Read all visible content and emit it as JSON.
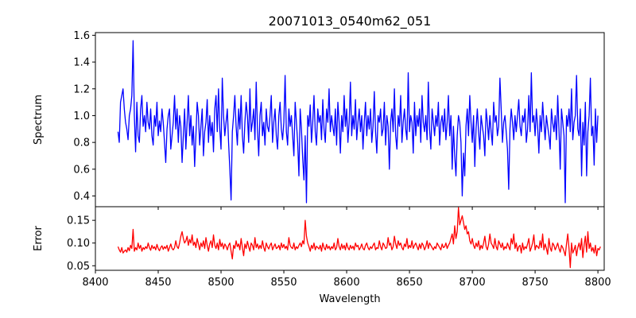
{
  "chart_data": [
    {
      "type": "line",
      "title": "20071013_0540m62_051",
      "xlabel": "",
      "ylabel": "Spectrum",
      "xlim": [
        8400,
        8805
      ],
      "ylim": [
        0.32,
        1.62
      ],
      "xticks": [
        8400,
        8450,
        8500,
        8550,
        8600,
        8650,
        8700,
        8750,
        8800
      ],
      "yticks": [
        0.4,
        0.6,
        0.8,
        1.0,
        1.2,
        1.4,
        1.6
      ],
      "ytick_labels": [
        "0.4",
        "0.6",
        "0.8",
        "1.0",
        "1.2",
        "1.4",
        "1.6"
      ],
      "grid": false,
      "series": [
        {
          "color": "#0000ff",
          "x_start": 8418,
          "x_step": 1,
          "values": [
            0.88,
            0.8,
            1.1,
            1.15,
            1.2,
            1.05,
            0.95,
            0.9,
            0.82,
            1.0,
            1.05,
            1.15,
            1.56,
            1.0,
            0.73,
            1.1,
            0.85,
            0.8,
            1.05,
            1.15,
            0.92,
            1.0,
            0.88,
            1.1,
            0.95,
            0.9,
            1.05,
            0.85,
            0.78,
            1.0,
            0.92,
            1.1,
            0.85,
            0.96,
            0.88,
            1.05,
            0.95,
            0.8,
            0.65,
            0.9,
            1.0,
            1.05,
            0.75,
            0.85,
            0.95,
            1.15,
            0.9,
            1.05,
            0.8,
            1.0,
            0.92,
            0.65,
            0.85,
            1.05,
            0.75,
            0.95,
            1.15,
            0.85,
            1.0,
            0.78,
            0.92,
            0.62,
            0.85,
            1.1,
            1.0,
            0.78,
            0.92,
            1.05,
            0.7,
            0.88,
            0.95,
            1.12,
            0.8,
            1.0,
            0.85,
            0.95,
            0.73,
            1.05,
            1.15,
            0.88,
            1.2,
            0.9,
            0.75,
            1.28,
            1.0,
            0.85,
            0.95,
            1.05,
            0.8,
            0.6,
            0.37,
            0.88,
            1.0,
            1.15,
            0.92,
            0.78,
            1.05,
            0.9,
            1.15,
            0.85,
            0.72,
            0.95,
            1.1,
            1.0,
            0.8,
            1.2,
            0.88,
            0.95,
            1.05,
            0.82,
            1.25,
            0.9,
            0.7,
            1.0,
            1.1,
            0.85,
            0.95,
            0.78,
            1.05,
            0.92,
            0.88,
            1.0,
            1.15,
            0.8,
            0.95,
            1.05,
            0.85,
            0.75,
            1.0,
            1.1,
            0.9,
            0.82,
            0.95,
            1.3,
            0.88,
            0.78,
            1.05,
            0.92,
            1.0,
            0.85,
            0.7,
            1.1,
            0.95,
            0.8,
            0.55,
            1.05,
            0.9,
            0.68,
            0.52,
            0.85,
            0.35,
            1.0,
            0.92,
            1.08,
            0.8,
            0.95,
            1.15,
            0.88,
            0.78,
            1.05,
            0.95,
            1.0,
            0.82,
            1.12,
            0.9,
            0.8,
            1.05,
            0.95,
            1.2,
            0.88,
            1.0,
            0.92,
            0.85,
            1.05,
            0.78,
            1.1,
            0.95,
            0.72,
            1.0,
            0.88,
            1.15,
            0.92,
            1.05,
            0.8,
            0.95,
            1.25,
            0.85,
            1.0,
            0.9,
            1.12,
            0.82,
            0.95,
            1.05,
            0.88,
            1.0,
            0.75,
            0.95,
            1.1,
            0.85,
            1.0,
            0.9,
            1.05,
            0.8,
            0.92,
            1.18,
            0.88,
            0.72,
            1.0,
            0.95,
            1.05,
            0.85,
            0.9,
            1.1,
            0.78,
            1.0,
            0.92,
            0.6,
            0.95,
            1.05,
            0.88,
            1.2,
            0.85,
            0.75,
            1.0,
            0.92,
            1.15,
            0.8,
            0.95,
            1.05,
            0.9,
            0.82,
            1.32,
            0.88,
            1.0,
            0.95,
            0.72,
            1.1,
            0.85,
            1.0,
            0.92,
            1.05,
            0.8,
            1.15,
            0.95,
            0.88,
            1.0,
            0.82,
            1.25,
            0.9,
            0.75,
            1.05,
            0.95,
            0.85,
            1.0,
            0.92,
            1.1,
            0.78,
            0.95,
            1.0,
            0.88,
            1.05,
            0.82,
            0.95,
            1.15,
            0.85,
            1.0,
            0.6,
            0.92,
            0.7,
            0.55,
            0.85,
            1.0,
            0.95,
            0.8,
            0.4,
            0.72,
            0.55,
            0.92,
            1.05,
            0.85,
            1.15,
            0.95,
            0.8,
            1.0,
            0.62,
            0.9,
            1.05,
            0.88,
            0.75,
            1.0,
            0.92,
            0.85,
            0.7,
            1.05,
            0.95,
            0.82,
            1.0,
            0.88,
            0.78,
            1.1,
            0.95,
            1.0,
            0.85,
            0.92,
            1.28,
            1.05,
            0.8,
            0.95,
            1.0,
            0.88,
            0.75,
            0.45,
            0.9,
            1.05,
            0.95,
            0.82,
            1.0,
            0.88,
            1.0,
            1.12,
            0.92,
            0.85,
            1.0,
            0.95,
            1.05,
            0.8,
            0.9,
            1.15,
            0.88,
            1.32,
            0.95,
            1.0,
            0.85,
            1.05,
            0.92,
            0.72,
            1.0,
            0.88,
            1.1,
            0.95,
            0.82,
            1.0,
            0.92,
            0.85,
            0.75,
            1.05,
            0.95,
            0.88,
            1.0,
            0.82,
            1.15,
            0.9,
            0.6,
            1.05,
            0.95,
            0.85,
            0.35,
            1.0,
            0.92,
            1.05,
            0.88,
            1.2,
            0.82,
            0.95,
            1.0,
            1.3,
            0.9,
            0.85,
            1.05,
            0.55,
            0.95,
            0.78,
            1.1,
            0.55,
            0.88,
            1.0,
            1.28,
            0.85,
            0.92,
            0.63,
            1.05,
            0.8,
            1.0
          ]
        }
      ]
    },
    {
      "type": "line",
      "title": "",
      "xlabel": "Wavelength",
      "ylabel": "Error",
      "xlim": [
        8400,
        8805
      ],
      "ylim": [
        0.04,
        0.18
      ],
      "xticks": [
        8400,
        8450,
        8500,
        8550,
        8600,
        8650,
        8700,
        8750,
        8800
      ],
      "xtick_labels": [
        "8400",
        "8450",
        "8500",
        "8550",
        "8600",
        "8650",
        "8700",
        "8750",
        "8800"
      ],
      "yticks": [
        0.05,
        0.1,
        0.15
      ],
      "ytick_labels": [
        "0.05",
        "0.10",
        "0.15"
      ],
      "grid": false,
      "series": [
        {
          "color": "#ff0000",
          "x_start": 8418,
          "x_step": 1,
          "values": [
            0.092,
            0.085,
            0.08,
            0.09,
            0.078,
            0.082,
            0.085,
            0.08,
            0.09,
            0.083,
            0.095,
            0.088,
            0.13,
            0.082,
            0.09,
            0.085,
            0.1,
            0.088,
            0.095,
            0.082,
            0.09,
            0.086,
            0.092,
            0.088,
            0.1,
            0.09,
            0.084,
            0.095,
            0.088,
            0.092,
            0.085,
            0.097,
            0.088,
            0.083,
            0.09,
            0.094,
            0.086,
            0.092,
            0.088,
            0.095,
            0.082,
            0.09,
            0.098,
            0.088,
            0.085,
            0.09,
            0.105,
            0.092,
            0.088,
            0.1,
            0.115,
            0.125,
            0.11,
            0.1,
            0.105,
            0.115,
            0.095,
            0.108,
            0.1,
            0.118,
            0.095,
            0.102,
            0.09,
            0.11,
            0.098,
            0.085,
            0.1,
            0.092,
            0.105,
            0.088,
            0.112,
            0.095,
            0.082,
            0.098,
            0.105,
            0.09,
            0.118,
            0.095,
            0.088,
            0.1,
            0.085,
            0.108,
            0.092,
            0.1,
            0.087,
            0.098,
            0.093,
            0.085,
            0.095,
            0.1,
            0.082,
            0.065,
            0.095,
            0.088,
            0.105,
            0.092,
            0.098,
            0.085,
            0.11,
            0.09,
            0.072,
            0.098,
            0.088,
            0.104,
            0.092,
            0.082,
            0.1,
            0.095,
            0.085,
            0.112,
            0.09,
            0.098,
            0.087,
            0.095,
            0.088,
            0.105,
            0.09,
            0.082,
            0.1,
            0.092,
            0.087,
            0.095,
            0.1,
            0.085,
            0.092,
            0.098,
            0.088,
            0.09,
            0.095,
            0.085,
            0.1,
            0.09,
            0.097,
            0.088,
            0.093,
            0.085,
            0.112,
            0.095,
            0.09,
            0.088,
            0.1,
            0.085,
            0.092,
            0.088,
            0.095,
            0.1,
            0.092,
            0.105,
            0.098,
            0.15,
            0.115,
            0.1,
            0.092,
            0.082,
            0.095,
            0.088,
            0.1,
            0.085,
            0.093,
            0.09,
            0.087,
            0.095,
            0.082,
            0.1,
            0.09,
            0.085,
            0.097,
            0.088,
            0.093,
            0.085,
            0.092,
            0.088,
            0.1,
            0.085,
            0.09,
            0.11,
            0.092,
            0.085,
            0.098,
            0.088,
            0.095,
            0.085,
            0.1,
            0.09,
            0.085,
            0.095,
            0.088,
            0.093,
            0.085,
            0.1,
            0.092,
            0.095,
            0.085,
            0.09,
            0.098,
            0.088,
            0.085,
            0.095,
            0.1,
            0.09,
            0.085,
            0.092,
            0.088,
            0.095,
            0.1,
            0.085,
            0.09,
            0.088,
            0.105,
            0.092,
            0.085,
            0.1,
            0.095,
            0.088,
            0.09,
            0.112,
            0.095,
            0.1,
            0.085,
            0.092,
            0.115,
            0.098,
            0.088,
            0.105,
            0.095,
            0.1,
            0.09,
            0.085,
            0.098,
            0.092,
            0.11,
            0.088,
            0.095,
            0.09,
            0.105,
            0.088,
            0.095,
            0.1,
            0.092,
            0.085,
            0.098,
            0.088,
            0.1,
            0.095,
            0.085,
            0.092,
            0.105,
            0.088,
            0.1,
            0.095,
            0.09,
            0.085,
            0.092,
            0.088,
            0.1,
            0.095,
            0.09,
            0.085,
            0.098,
            0.09,
            0.092,
            0.1,
            0.088,
            0.095,
            0.1,
            0.11,
            0.12,
            0.098,
            0.138,
            0.11,
            0.125,
            0.178,
            0.14,
            0.15,
            0.16,
            0.145,
            0.13,
            0.138,
            0.12,
            0.125,
            0.105,
            0.098,
            0.11,
            0.095,
            0.088,
            0.1,
            0.092,
            0.105,
            0.085,
            0.095,
            0.088,
            0.1,
            0.115,
            0.092,
            0.085,
            0.098,
            0.12,
            0.1,
            0.095,
            0.088,
            0.11,
            0.092,
            0.085,
            0.105,
            0.098,
            0.09,
            0.1,
            0.085,
            0.092,
            0.088,
            0.1,
            0.092,
            0.085,
            0.11,
            0.098,
            0.12,
            0.088,
            0.1,
            0.082,
            0.092,
            0.095,
            0.078,
            0.1,
            0.085,
            0.092,
            0.088,
            0.098,
            0.11,
            0.082,
            0.09,
            0.1,
            0.118,
            0.085,
            0.095,
            0.092,
            0.088,
            0.105,
            0.09,
            0.12,
            0.085,
            0.098,
            0.088,
            0.075,
            0.11,
            0.09,
            0.082,
            0.1,
            0.095,
            0.085,
            0.092,
            0.1,
            0.088,
            0.08,
            0.095,
            0.09,
            0.082,
            0.072,
            0.098,
            0.12,
            0.088,
            0.046,
            0.1,
            0.078,
            0.085,
            0.095,
            0.072,
            0.09,
            0.1,
            0.085,
            0.11,
            0.068,
            0.095,
            0.115,
            0.08,
            0.125,
            0.088,
            0.1,
            0.082,
            0.09,
            0.078,
            0.095,
            0.072,
            0.088,
            0.085,
            0.092
          ]
        }
      ]
    }
  ]
}
